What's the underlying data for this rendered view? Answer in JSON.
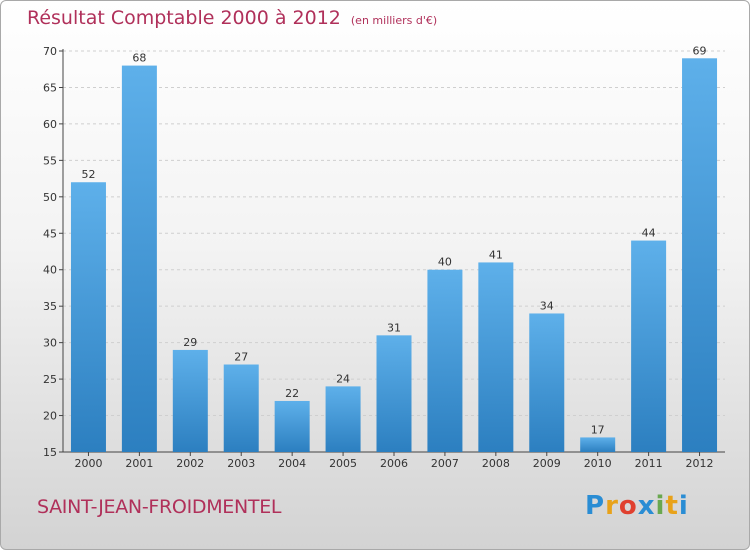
{
  "title": "Résultat Comptable 2000 à 2012",
  "unit_note": "(en milliers d'€)",
  "subject": "SAINT-JEAN-FROIDMENTEL",
  "logo": {
    "letters": [
      "P",
      "r",
      "o",
      "x",
      "i",
      "t",
      "i"
    ],
    "colors": [
      "#2a8dd4",
      "#e8a21a",
      "#e0402f",
      "#2a8dd4",
      "#6aa84f",
      "#e8a21a",
      "#2a8dd4"
    ]
  },
  "colors": {
    "bar_light": "#5eb0ea",
    "bar_dark": "#2c7fc0",
    "title": "#b0305a",
    "grid": "#cfcfcf",
    "axis": "#444444"
  },
  "chart_data": {
    "type": "bar",
    "title": "Résultat Comptable 2000 à 2012",
    "subtitle": "(en milliers d'€)",
    "categories": [
      "2000",
      "2001",
      "2002",
      "2003",
      "2004",
      "2005",
      "2006",
      "2007",
      "2008",
      "2009",
      "2010",
      "2011",
      "2012"
    ],
    "values": [
      52,
      68,
      29,
      27,
      22,
      24,
      31,
      40,
      41,
      34,
      17,
      44,
      69
    ],
    "ylim": [
      15,
      70
    ],
    "yticks": [
      15,
      20,
      25,
      30,
      35,
      40,
      45,
      50,
      55,
      60,
      65,
      70
    ],
    "grid": true,
    "xlabel": "",
    "ylabel": ""
  }
}
